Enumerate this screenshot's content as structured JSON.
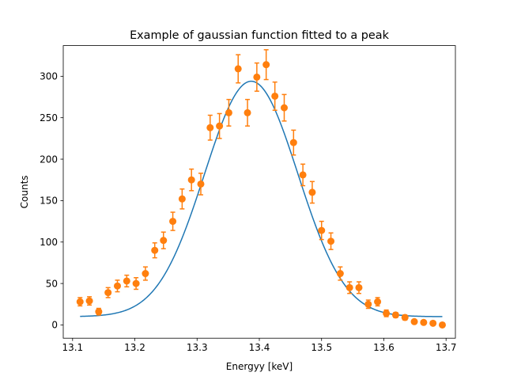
{
  "chart_data": {
    "type": "scatter",
    "title": "Example of gaussian function fitted to a peak",
    "xlabel": "Energyy [keV]",
    "ylabel": "Counts",
    "xlim": [
      13.085,
      13.715
    ],
    "ylim": [
      -16,
      337
    ],
    "x_ticks": [
      13.1,
      13.2,
      13.3,
      13.4,
      13.5,
      13.6,
      13.7
    ],
    "x_tick_labels": [
      "13.1",
      "13.2",
      "13.3",
      "13.4",
      "13.5",
      "13.6",
      "13.7"
    ],
    "y_ticks": [
      0,
      50,
      100,
      150,
      200,
      250,
      300
    ],
    "y_tick_labels": [
      "0",
      "50",
      "100",
      "150",
      "200",
      "250",
      "300"
    ],
    "grid": false,
    "series": [
      {
        "kind": "errorbar",
        "color": "#ff7f0e",
        "points": [
          {
            "x": 13.112,
            "y": 28,
            "err": 5
          },
          {
            "x": 13.127,
            "y": 29,
            "err": 5
          },
          {
            "x": 13.142,
            "y": 16,
            "err": 4
          },
          {
            "x": 13.157,
            "y": 39,
            "err": 6
          },
          {
            "x": 13.172,
            "y": 47,
            "err": 7
          },
          {
            "x": 13.187,
            "y": 53,
            "err": 7
          },
          {
            "x": 13.202,
            "y": 50,
            "err": 7
          },
          {
            "x": 13.217,
            "y": 62,
            "err": 8
          },
          {
            "x": 13.232,
            "y": 90,
            "err": 9
          },
          {
            "x": 13.246,
            "y": 102,
            "err": 10
          },
          {
            "x": 13.261,
            "y": 125,
            "err": 11
          },
          {
            "x": 13.276,
            "y": 152,
            "err": 12
          },
          {
            "x": 13.291,
            "y": 175,
            "err": 13
          },
          {
            "x": 13.306,
            "y": 170,
            "err": 13
          },
          {
            "x": 13.321,
            "y": 238,
            "err": 15
          },
          {
            "x": 13.336,
            "y": 240,
            "err": 15
          },
          {
            "x": 13.351,
            "y": 256,
            "err": 16
          },
          {
            "x": 13.366,
            "y": 309,
            "err": 17
          },
          {
            "x": 13.381,
            "y": 256,
            "err": 16
          },
          {
            "x": 13.396,
            "y": 299,
            "err": 17
          },
          {
            "x": 13.411,
            "y": 314,
            "err": 18
          },
          {
            "x": 13.425,
            "y": 276,
            "err": 17
          },
          {
            "x": 13.44,
            "y": 262,
            "err": 16
          },
          {
            "x": 13.455,
            "y": 220,
            "err": 15
          },
          {
            "x": 13.47,
            "y": 181,
            "err": 13
          },
          {
            "x": 13.485,
            "y": 160,
            "err": 13
          },
          {
            "x": 13.5,
            "y": 114,
            "err": 11
          },
          {
            "x": 13.515,
            "y": 101,
            "err": 10
          },
          {
            "x": 13.53,
            "y": 62,
            "err": 8
          },
          {
            "x": 13.545,
            "y": 45,
            "err": 7
          },
          {
            "x": 13.56,
            "y": 45,
            "err": 7
          },
          {
            "x": 13.575,
            "y": 25,
            "err": 5
          },
          {
            "x": 13.59,
            "y": 28,
            "err": 5
          },
          {
            "x": 13.604,
            "y": 14,
            "err": 4
          },
          {
            "x": 13.619,
            "y": 12,
            "err": 3
          },
          {
            "x": 13.634,
            "y": 9,
            "err": 3
          },
          {
            "x": 13.649,
            "y": 4,
            "err": 2
          },
          {
            "x": 13.664,
            "y": 3,
            "err": 2
          },
          {
            "x": 13.679,
            "y": 2,
            "err": 1
          },
          {
            "x": 13.694,
            "y": 0,
            "err": 0
          }
        ]
      },
      {
        "kind": "line",
        "color": "#1f77b4",
        "model": "gaussian",
        "amplitude": 284,
        "center": 13.387,
        "sigma": 0.075,
        "offset": 10,
        "x_range": [
          13.112,
          13.694
        ]
      }
    ]
  }
}
